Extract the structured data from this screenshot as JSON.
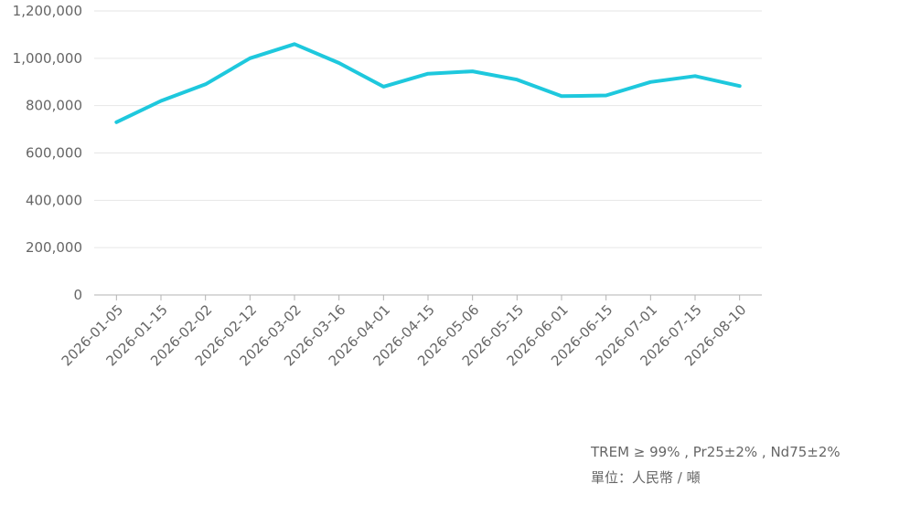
{
  "chart_data": {
    "type": "line",
    "x": [
      "2026-01-05",
      "2026-01-15",
      "2026-02-02",
      "2026-02-12",
      "2026-03-02",
      "2026-03-16",
      "2026-04-01",
      "2026-04-15",
      "2026-05-06",
      "2026-05-15",
      "2026-06-01",
      "2026-06-15",
      "2026-07-01",
      "2026-07-15",
      "2026-08-10"
    ],
    "series": [
      {
        "values": [
          730000,
          820000,
          890000,
          1000000,
          1060000,
          980000,
          880000,
          935000,
          945000,
          910000,
          840000,
          843000,
          900000,
          925000,
          883000
        ]
      }
    ],
    "ylim": [
      0,
      1200000
    ],
    "yticks": [
      "0",
      "200,000",
      "400,000",
      "600,000",
      "800,000",
      "1,000,000",
      "1,200,000"
    ],
    "ytick_values": [
      0,
      200000,
      400000,
      600000,
      800000,
      1000000,
      1200000
    ],
    "grid": true,
    "line_color": "#1ec8dd",
    "grid_color": "#e6e6e6",
    "axis_color": "#b3b3b3"
  },
  "notes": {
    "spec": "TREM ≥ 99% , Pr25±2% , Nd75±2%",
    "unit": "單位：人民幣 / 噸"
  }
}
